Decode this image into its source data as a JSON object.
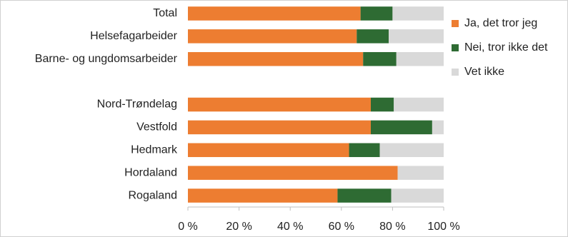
{
  "chart_data": {
    "type": "stacked-bar-horizontal",
    "categories": [
      "Total",
      "Helsefagarbeider",
      "Barne- og ungdomsarbeider",
      null,
      "Nord-Trøndelag",
      "Vestfold",
      "Hedmark",
      "Hordaland",
      "Rogaland"
    ],
    "series": [
      {
        "name": "Ja, det tror jeg",
        "color": "#ed7d31",
        "values": [
          67.5,
          66,
          68.5,
          null,
          71.5,
          71.5,
          63,
          82,
          58.5
        ]
      },
      {
        "name": "Nei, tror ikke det",
        "color": "#2e6b33",
        "values": [
          12.5,
          12.5,
          13,
          null,
          9,
          24,
          12,
          0,
          21
        ]
      },
      {
        "name": "Vet ikke",
        "color": "#d9d9d9",
        "values": [
          20,
          21.5,
          18.5,
          null,
          19.5,
          4.5,
          25,
          18,
          20.5
        ]
      }
    ],
    "xlim": [
      0,
      100
    ],
    "xticks": [
      {
        "value": 0,
        "label": "0 %"
      },
      {
        "value": 20,
        "label": "20 %"
      },
      {
        "value": 40,
        "label": "40 %"
      },
      {
        "value": 60,
        "label": "60 %"
      },
      {
        "value": 80,
        "label": "80 %"
      },
      {
        "value": 100,
        "label": "100 %"
      }
    ],
    "legend": "right"
  }
}
